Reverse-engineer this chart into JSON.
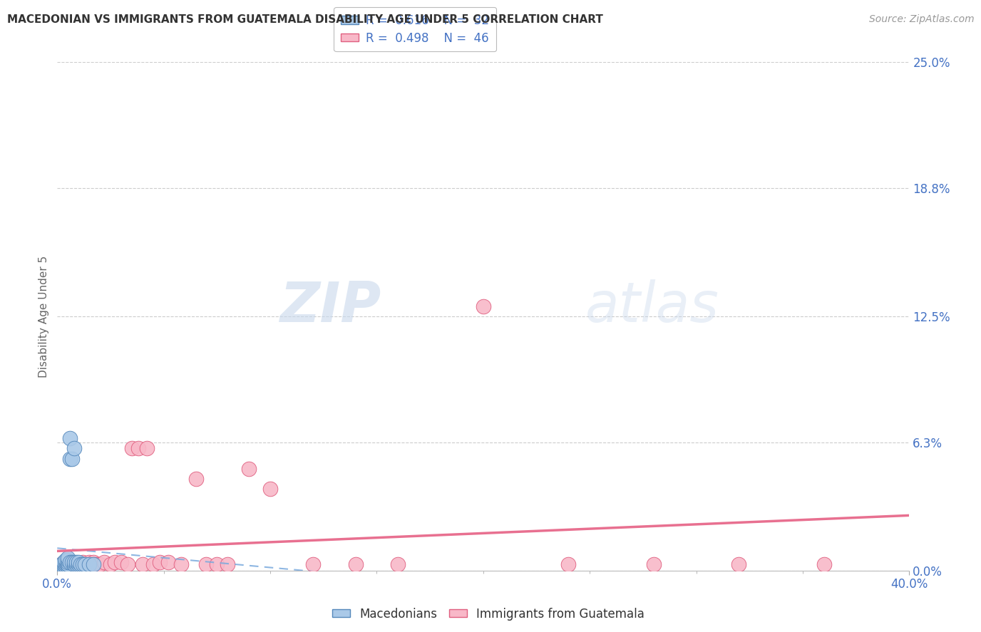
{
  "title": "MACEDONIAN VS IMMIGRANTS FROM GUATEMALA DISABILITY AGE UNDER 5 CORRELATION CHART",
  "source": "Source: ZipAtlas.com",
  "ylabel": "Disability Age Under 5",
  "xlim": [
    0.0,
    0.4
  ],
  "ylim": [
    0.0,
    0.25
  ],
  "ytick_values": [
    0.0,
    0.063,
    0.125,
    0.188,
    0.25
  ],
  "ytick_labels": [
    "0.0%",
    "6.3%",
    "12.5%",
    "18.8%",
    "25.0%"
  ],
  "legend_blue_R": "0.616",
  "legend_blue_N": "32",
  "legend_pink_R": "0.498",
  "legend_pink_N": "46",
  "legend_macedonians": "Macedonians",
  "legend_guatemala": "Immigrants from Guatemala",
  "blue_color": "#aac9e8",
  "blue_edge_color": "#5588bb",
  "blue_line_color": "#7aaadd",
  "pink_color": "#f8b8c8",
  "pink_edge_color": "#e06080",
  "pink_line_color": "#e87090",
  "watermark_zip": "ZIP",
  "watermark_atlas": "atlas",
  "background_color": "#ffffff",
  "grid_color": "#cccccc",
  "blue_scatter_x": [
    0.002,
    0.002,
    0.003,
    0.003,
    0.003,
    0.004,
    0.004,
    0.004,
    0.004,
    0.005,
    0.005,
    0.005,
    0.005,
    0.005,
    0.005,
    0.006,
    0.006,
    0.006,
    0.007,
    0.007,
    0.008,
    0.008,
    0.008,
    0.009,
    0.009,
    0.01,
    0.01,
    0.011,
    0.012,
    0.013,
    0.015,
    0.017
  ],
  "blue_scatter_y": [
    0.002,
    0.003,
    0.002,
    0.003,
    0.004,
    0.002,
    0.003,
    0.004,
    0.005,
    0.002,
    0.003,
    0.003,
    0.004,
    0.005,
    0.006,
    0.004,
    0.055,
    0.065,
    0.004,
    0.055,
    0.003,
    0.004,
    0.06,
    0.003,
    0.004,
    0.003,
    0.004,
    0.003,
    0.003,
    0.003,
    0.003,
    0.003
  ],
  "pink_scatter_x": [
    0.002,
    0.003,
    0.004,
    0.005,
    0.006,
    0.007,
    0.008,
    0.009,
    0.01,
    0.011,
    0.012,
    0.013,
    0.014,
    0.015,
    0.016,
    0.017,
    0.018,
    0.019,
    0.02,
    0.022,
    0.025,
    0.027,
    0.03,
    0.033,
    0.035,
    0.038,
    0.04,
    0.042,
    0.045,
    0.048,
    0.052,
    0.058,
    0.065,
    0.07,
    0.075,
    0.08,
    0.09,
    0.1,
    0.12,
    0.14,
    0.16,
    0.2,
    0.24,
    0.28,
    0.32,
    0.36
  ],
  "pink_scatter_y": [
    0.003,
    0.003,
    0.003,
    0.003,
    0.003,
    0.003,
    0.003,
    0.003,
    0.003,
    0.003,
    0.004,
    0.003,
    0.003,
    0.004,
    0.003,
    0.004,
    0.003,
    0.003,
    0.003,
    0.004,
    0.003,
    0.004,
    0.004,
    0.003,
    0.06,
    0.06,
    0.003,
    0.06,
    0.003,
    0.004,
    0.004,
    0.003,
    0.045,
    0.003,
    0.003,
    0.003,
    0.05,
    0.04,
    0.003,
    0.003,
    0.003,
    0.13,
    0.003,
    0.003,
    0.003,
    0.003
  ],
  "title_fontsize": 11,
  "source_fontsize": 10,
  "axis_label_fontsize": 11,
  "tick_fontsize": 12,
  "legend_fontsize": 12
}
